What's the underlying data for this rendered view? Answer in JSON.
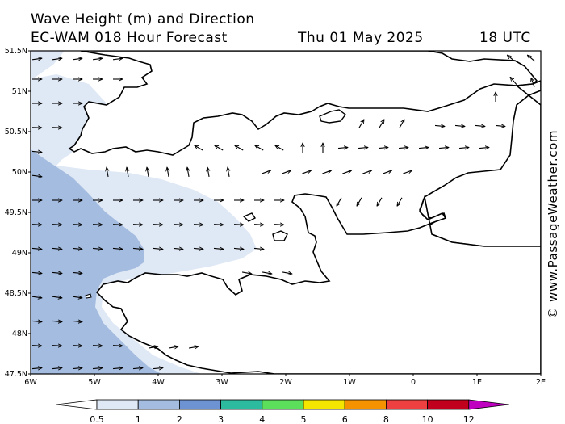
{
  "header": {
    "title": "Wave Height (m) and Direction",
    "model": "EC-WAM 018 Hour Forecast",
    "date": "Thu 01 May 2025",
    "time": "18 UTC"
  },
  "map": {
    "lon_range": [
      -6,
      2
    ],
    "lat_range": [
      47.5,
      51.5
    ],
    "lat_ticks": [
      "47.5N",
      "48N",
      "48.5N",
      "49N",
      "49.5N",
      "50N",
      "50.5N",
      "51N",
      "51.5N"
    ],
    "lon_ticks": [
      "6W",
      "5W",
      "4W",
      "3W",
      "2W",
      "1W",
      "0",
      "1E",
      "2E"
    ],
    "colors": {
      "band_0_5_1": "#dfe8f5",
      "band_1_2": "#a4bcdf",
      "land": "#ffffff",
      "coast": "#000000"
    }
  },
  "legend": {
    "labels": [
      "0.5",
      "1",
      "2",
      "3",
      "4",
      "5",
      "6",
      "8",
      "10",
      "12"
    ],
    "colors": [
      "#dfe8f5",
      "#a4bcdf",
      "#6e93d2",
      "#2dbba0",
      "#5ce05c",
      "#f5e600",
      "#f59200",
      "#ee4040",
      "#c0001c",
      "#c000c0"
    ]
  },
  "watermark": "© www.PassageWeather.com"
}
